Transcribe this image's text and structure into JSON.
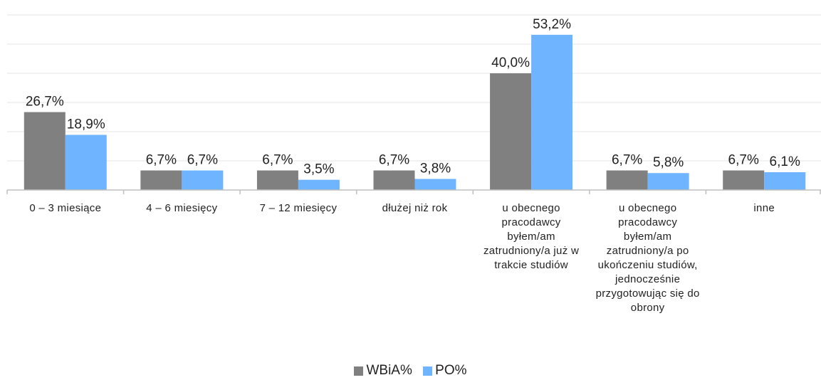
{
  "chart_data": {
    "type": "bar",
    "categories": [
      "0 – 3 miesiące",
      "4 – 6 miesięcy",
      "7 – 12 miesięcy",
      "dłużej niż rok",
      "u obecnego pracodawcy byłem/am zatrudniony/a już w trakcie studiów",
      "u obecnego pracodawcy byłem/am zatrudniony/a po ukończeniu studiów, jednocześnie przygotowując się do obrony",
      "inne"
    ],
    "series": [
      {
        "name": "WBiA%",
        "color": "#808080",
        "values": [
          26.7,
          6.7,
          6.7,
          6.7,
          40.0,
          6.7,
          6.7
        ],
        "labels": [
          "26,7%",
          "6,7%",
          "6,7%",
          "6,7%",
          "40,0%",
          "6,7%",
          "6,7%"
        ]
      },
      {
        "name": "PO%",
        "color": "#6fb4ff",
        "values": [
          18.9,
          6.7,
          3.5,
          3.8,
          53.2,
          5.8,
          6.1
        ],
        "labels": [
          "18,9%",
          "6,7%",
          "3,5%",
          "3,8%",
          "53,2%",
          "5,8%",
          "6,1%"
        ]
      }
    ],
    "ylim": [
      0,
      60
    ],
    "grid": true,
    "legend": "bottom"
  }
}
